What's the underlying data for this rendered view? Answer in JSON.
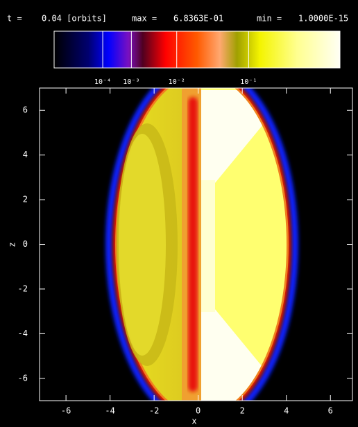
{
  "chart_data": {
    "type": "image",
    "time_label": "t =",
    "time": "0.04 [orbits]",
    "max_label": "max =",
    "min_label": "min =",
    "max": {
      "value": 0.68363,
      "label": "6.8363E-01"
    },
    "min": {
      "value": 1e-15,
      "label": "1.0000E-15"
    },
    "colorbar": {
      "exponent": 0.2,
      "ticks": [
        {
          "value": 0.0001,
          "label": "10⁻⁴"
        },
        {
          "value": 0.001,
          "label": "10⁻³"
        },
        {
          "value": 0.01,
          "label": "10⁻²"
        },
        {
          "value": 0.1,
          "label": "10⁻¹"
        }
      ]
    },
    "xlabel": "x",
    "ylabel": "z",
    "xlim": [
      -7.2,
      7
    ],
    "ylim": [
      -7,
      7
    ],
    "xticks": [
      -6,
      -4,
      -2,
      0,
      2,
      4,
      6
    ],
    "yticks": [
      -6,
      -4,
      -2,
      0,
      2,
      4,
      6
    ]
  }
}
